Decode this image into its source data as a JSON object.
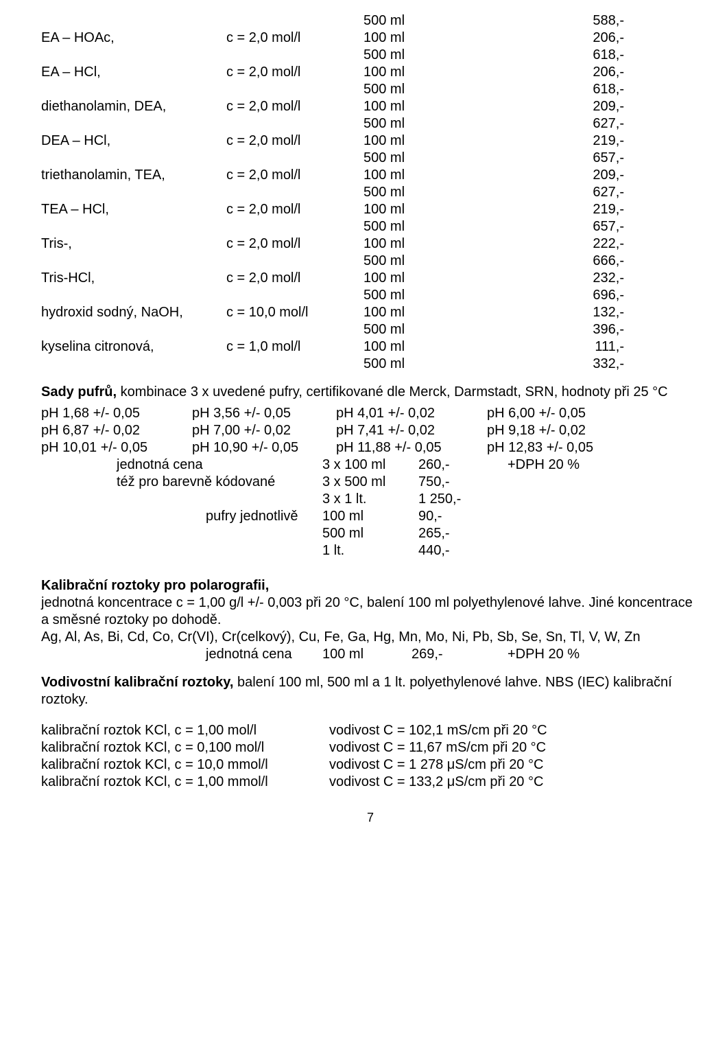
{
  "top_rows": [
    {
      "name": "",
      "conc": "",
      "vol": "500 ml",
      "price": "588,-"
    },
    {
      "name": "EA – HOAc,",
      "conc": "c = 2,0 mol/l",
      "vol": "100 ml",
      "price": "206,-"
    },
    {
      "name": "",
      "conc": "",
      "vol": "500 ml",
      "price": "618,-"
    },
    {
      "name": "EA – HCl,",
      "conc": "c = 2,0 mol/l",
      "vol": "100 ml",
      "price": "206,-"
    },
    {
      "name": "",
      "conc": "",
      "vol": "500 ml",
      "price": "618,-"
    },
    {
      "name": "diethanolamin, DEA,",
      "conc": "c = 2,0 mol/l",
      "vol": "100 ml",
      "price": "209,-"
    },
    {
      "name": "",
      "conc": "",
      "vol": "500 ml",
      "price": "627,-"
    },
    {
      "name": "DEA – HCl,",
      "conc": "c = 2,0 mol/l",
      "vol": "100 ml",
      "price": "219,-"
    },
    {
      "name": "",
      "conc": "",
      "vol": "500 ml",
      "price": "657,-"
    },
    {
      "name": "triethanolamin, TEA,",
      "conc": "c = 2,0 mol/l",
      "vol": "100 ml",
      "price": "209,-"
    },
    {
      "name": "",
      "conc": "",
      "vol": "500 ml",
      "price": "627,-"
    },
    {
      "name": "TEA – HCl,",
      "conc": "c = 2,0 mol/l",
      "vol": "100 ml",
      "price": "219,-"
    },
    {
      "name": "",
      "conc": "",
      "vol": "500 ml",
      "price": "657,-"
    },
    {
      "name": "Tris-,",
      "conc": "c = 2,0 mol/l",
      "vol": "100 ml",
      "price": "222,-"
    },
    {
      "name": "",
      "conc": "",
      "vol": "500 ml",
      "price": "666,-"
    },
    {
      "name": "Tris-HCl,",
      "conc": "c = 2,0 mol/l",
      "vol": "100 ml",
      "price": "232,-"
    },
    {
      "name": "",
      "conc": "",
      "vol": "500 ml",
      "price": "696,-"
    },
    {
      "name": "hydroxid sodný, NaOH,",
      "conc": "c = 10,0 mol/l",
      "vol": "100 ml",
      "price": "132,-"
    },
    {
      "name": "",
      "conc": "",
      "vol": "500 ml",
      "price": "396,-"
    },
    {
      "name": "kyselina citronová,",
      "conc": "c = 1,0 mol/l",
      "vol": "100 ml",
      "price": "111,-"
    },
    {
      "name": "",
      "conc": "",
      "vol": "500 ml",
      "price": "332,-"
    }
  ],
  "sady_heading": "Sady pufrů,",
  "sady_rest": " kombinace 3 x uvedené pufry, certifikované dle Merck, Darmstadt, SRN, hodnoty při 25 °C",
  "ph_rows": [
    [
      "pH 1,68 +/- 0,05",
      "pH 3,56 +/- 0,05",
      "pH 4,01 +/- 0,02",
      "pH 6,00 +/- 0,05"
    ],
    [
      "pH 6,87 +/- 0,02",
      "pH 7,00 +/- 0,02",
      "pH 7,41 +/- 0,02",
      "pH 9,18 +/- 0,02"
    ],
    [
      "pH 10,01 +/- 0,05",
      "pH 10,90 +/- 0,05",
      "pH 11,88 +/- 0,05",
      "pH 12,83 +/- 0,05"
    ]
  ],
  "unit_rows": [
    {
      "label": "jednotná cena",
      "vol": "3 x 100 ml",
      "price": "260,-",
      "extra": "+DPH 20 %"
    },
    {
      "label": "též pro barevně kódované",
      "vol": "3 x 500 ml",
      "price": "750,-",
      "extra": ""
    },
    {
      "label": "",
      "vol": "3 x 1 lt.",
      "price": "1 250,-",
      "extra": ""
    }
  ],
  "singly_rows": [
    {
      "label": "pufry jednotlivě",
      "vol": "100 ml",
      "price": "90,-"
    },
    {
      "label": "",
      "vol": "500 ml",
      "price": "265,-"
    },
    {
      "label": "",
      "vol": "1 lt.",
      "price": "440,-"
    }
  ],
  "polar_heading": "Kalibrační roztoky pro polarografii,",
  "polar_body1": "jednotná koncentrace c = 1,00 g/l  +/- 0,003 při 20 °C, balení 100 ml polyethylenové lahve. Jiné koncentrace a směsné roztoky po dohodě.",
  "polar_body2": "Ag, Al, As, Bi, Cd, Co, Cr(VI), Cr(celkový), Cu, Fe, Ga, Hg, Mn, Mo, Ni, Pb, Sb, Se, Sn, Tl, V, W, Zn",
  "polar_price_label": "jednotná cena",
  "polar_price_vol": "100 ml",
  "polar_price_val": "269,-",
  "polar_price_extra": "+DPH 20 %",
  "cond_heading": "Vodivostní kalibrační roztoky,",
  "cond_rest": " balení 100 ml, 500 ml a 1 lt. polyethylenové lahve. NBS (IEC) kalibrační roztoky.",
  "cal_rows": [
    {
      "left": "kalibrační roztok KCl, c = 1,00 mol/l",
      "right": "vodivost C = 102,1 mS/cm při 20 °C"
    },
    {
      "left": "kalibrační roztok KCl, c = 0,100 mol/l",
      "right": "vodivost C = 11,67 mS/cm při 20 °C"
    },
    {
      "left": "kalibrační roztok KCl, c = 10,0 mmol/l",
      "right": "vodivost C = 1 278 μS/cm při 20 °C"
    },
    {
      "left": "kalibrační roztok KCl, c = 1,00 mmol/l",
      "right": "vodivost C = 133,2 μS/cm při 20 °C"
    }
  ],
  "page_number": "7"
}
